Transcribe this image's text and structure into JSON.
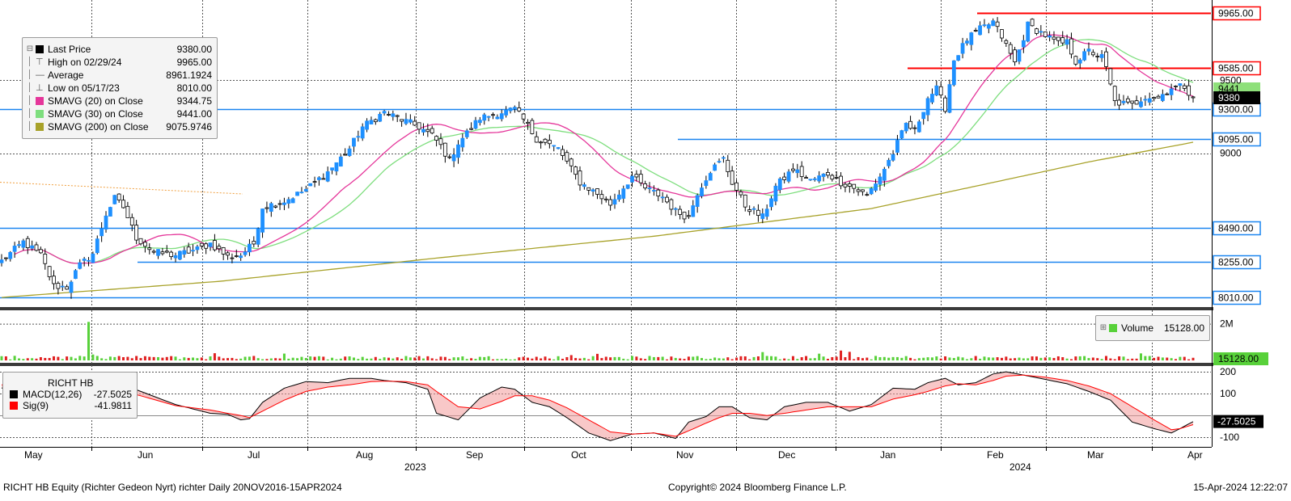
{
  "footer": {
    "left": "RICHT HB Equity (Richter Gedeon Nyrt) richter  Daily 20NOV2016-15APR2024",
    "center": "Copyright© 2024 Bloomberg Finance L.P.",
    "right": "15-Apr-2024 12:22:07"
  },
  "colors": {
    "up": "#1e90ff",
    "down": "#000000",
    "sma20": "#e5369a",
    "sma30": "#7ede7e",
    "sma200": "#a8a22a",
    "hline_blue": "#1a85f0",
    "hline_red": "#ff0000",
    "macd": "#000000",
    "signal": "#ff0000",
    "macd_fill": "#f29a9a"
  },
  "chart_data": [
    {
      "type": "candlestick",
      "panel": "price",
      "legend_placement": "top-left",
      "legend": [
        {
          "icon": "square-icon",
          "label": "Last Price",
          "value": "9380.00",
          "color": "#000000"
        },
        {
          "icon": "high-icon",
          "label": "High on 02/29/24",
          "value": "9965.00",
          "color": ""
        },
        {
          "icon": "average-icon",
          "label": "Average",
          "value": "8961.1924",
          "color": ""
        },
        {
          "icon": "low-icon",
          "label": "Low on 05/17/23",
          "value": "8010.00",
          "color": ""
        },
        {
          "icon": "square-icon",
          "label": "SMAVG (20)  on Close",
          "value": "9344.75",
          "color": "#e5369a"
        },
        {
          "icon": "square-icon",
          "label": "SMAVG (30)  on Close",
          "value": "9441.00",
          "color": "#7ede7e"
        },
        {
          "icon": "square-icon",
          "label": "SMAVG (200)  on Close",
          "value": "9075.9746",
          "color": "#a8a22a"
        }
      ],
      "y_axis": {
        "ylim": [
          7955,
          10040
        ],
        "ticks": [
          9500,
          9000
        ],
        "grid": true
      },
      "x_axis": {
        "months": [
          "May",
          "Jun",
          "Jul",
          "Aug",
          "Sep",
          "Oct",
          "Nov",
          "Dec",
          "Jan",
          "Feb",
          "Mar",
          "Apr"
        ],
        "years": [
          "2023",
          "2024"
        ],
        "month_boundaries": [
          "Jun",
          "Jul",
          "Aug",
          "Sep",
          "Oct",
          "Nov",
          "Dec",
          "Jan",
          "Feb",
          "Mar",
          "Apr"
        ],
        "grid": true
      },
      "horizontal_levels": [
        {
          "value": 9965.0,
          "label": "9965.00",
          "color": "red",
          "start": "Feb"
        },
        {
          "value": 9585.0,
          "label": "9585.00",
          "color": "red",
          "start": "Jan"
        },
        {
          "value": 9300.0,
          "label": "9300.00",
          "color": "blue",
          "start": "May"
        },
        {
          "value": 9095.0,
          "label": "9095.00",
          "color": "blue",
          "start": "Nov"
        },
        {
          "value": 8490.0,
          "label": "8490.00",
          "color": "blue",
          "start": "May"
        },
        {
          "value": 8255.0,
          "label": "8255.00",
          "color": "blue",
          "start": "Jun"
        },
        {
          "value": 8010.0,
          "label": "8010.00",
          "color": "blue",
          "start": "May"
        }
      ],
      "value_tags": [
        {
          "value": 9441.0,
          "label": "9441.00",
          "color": "green"
        },
        {
          "value": 9380.0,
          "label": "9380.00",
          "color": "black"
        }
      ],
      "close_anchors": [
        [
          0,
          8260
        ],
        [
          5,
          8390
        ],
        [
          9,
          8300
        ],
        [
          12,
          8090
        ],
        [
          15,
          8080
        ],
        [
          18,
          8230
        ],
        [
          21,
          8310
        ],
        [
          24,
          8580
        ],
        [
          26,
          8690
        ],
        [
          28,
          8630
        ],
        [
          31,
          8420
        ],
        [
          35,
          8320
        ],
        [
          40,
          8300
        ],
        [
          45,
          8340
        ],
        [
          48,
          8380
        ],
        [
          52,
          8290
        ],
        [
          55,
          8300
        ],
        [
          58,
          8380
        ],
        [
          60,
          8630
        ],
        [
          65,
          8670
        ],
        [
          70,
          8750
        ],
        [
          75,
          8870
        ],
        [
          80,
          9030
        ],
        [
          83,
          9180
        ],
        [
          88,
          9280
        ],
        [
          92,
          9230
        ],
        [
          96,
          9180
        ],
        [
          99,
          9120
        ],
        [
          101,
          9050
        ],
        [
          103,
          8950
        ],
        [
          105,
          9070
        ],
        [
          110,
          9240
        ],
        [
          115,
          9280
        ],
        [
          118,
          9300
        ],
        [
          120,
          9230
        ],
        [
          123,
          9100
        ],
        [
          128,
          9030
        ],
        [
          133,
          8800
        ],
        [
          137,
          8720
        ],
        [
          140,
          8650
        ],
        [
          145,
          8840
        ],
        [
          148,
          8760
        ],
        [
          152,
          8700
        ],
        [
          155,
          8600
        ],
        [
          158,
          8560
        ],
        [
          160,
          8730
        ],
        [
          163,
          8880
        ],
        [
          166,
          8960
        ],
        [
          168,
          8800
        ],
        [
          171,
          8640
        ],
        [
          175,
          8560
        ],
        [
          178,
          8770
        ],
        [
          182,
          8890
        ],
        [
          186,
          8810
        ],
        [
          190,
          8860
        ],
        [
          193,
          8800
        ],
        [
          196,
          8760
        ],
        [
          199,
          8710
        ],
        [
          202,
          8840
        ],
        [
          205,
          9000
        ],
        [
          208,
          9200
        ],
        [
          210,
          9150
        ],
        [
          213,
          9380
        ],
        [
          215,
          9440
        ],
        [
          217,
          9310
        ],
        [
          219,
          9640
        ],
        [
          222,
          9780
        ],
        [
          225,
          9850
        ],
        [
          228,
          9900
        ],
        [
          230,
          9800
        ],
        [
          233,
          9620
        ],
        [
          236,
          9880
        ],
        [
          240,
          9810
        ],
        [
          243,
          9750
        ],
        [
          245,
          9760
        ],
        [
          247,
          9630
        ],
        [
          250,
          9700
        ],
        [
          253,
          9660
        ],
        [
          254,
          9580
        ],
        [
          256,
          9350
        ],
        [
          260,
          9330
        ],
        [
          263,
          9390
        ],
        [
          266,
          9380
        ],
        [
          269,
          9450
        ],
        [
          272,
          9460
        ],
        [
          274,
          9380
        ]
      ],
      "sma200_anchors": [
        [
          0,
          8010
        ],
        [
          50,
          8120
        ],
        [
          100,
          8280
        ],
        [
          150,
          8430
        ],
        [
          200,
          8620
        ],
        [
          250,
          8940
        ],
        [
          274,
          9075
        ]
      ]
    },
    {
      "type": "bar",
      "panel": "volume",
      "legend": [
        {
          "label": "Volume",
          "value": "15128.00",
          "color": "#58d13a"
        }
      ],
      "y_axis": {
        "ticks_label": [
          "2M"
        ],
        "ylim": [
          0,
          2600000
        ]
      },
      "last_value_tag": "15128.00",
      "spike": {
        "bar_index": 20,
        "value": 2100000
      },
      "typical_range": [
        50000,
        250000
      ]
    },
    {
      "type": "line",
      "panel": "macd",
      "legend": [
        {
          "label": "RICHT HB",
          "value": "",
          "color": ""
        },
        {
          "label": "MACD(12,26)",
          "value": "-27.5025",
          "color": "#000000"
        },
        {
          "label": "Sig(9)",
          "value": "-41.9811",
          "color": "#ff0000"
        }
      ],
      "y_axis": {
        "ylim": [
          -125,
          215
        ],
        "ticks": [
          200,
          100,
          -100
        ],
        "zero_line": true
      },
      "last_value_tag": "-27.5025",
      "macd_anchors": [
        [
          0,
          125
        ],
        [
          8,
          160
        ],
        [
          14,
          140
        ],
        [
          18,
          110
        ],
        [
          24,
          135
        ],
        [
          28,
          140
        ],
        [
          32,
          110
        ],
        [
          40,
          50
        ],
        [
          48,
          10
        ],
        [
          52,
          5
        ],
        [
          55,
          -20
        ],
        [
          57,
          -15
        ],
        [
          60,
          60
        ],
        [
          65,
          125
        ],
        [
          70,
          155
        ],
        [
          75,
          150
        ],
        [
          80,
          170
        ],
        [
          85,
          170
        ],
        [
          88,
          160
        ],
        [
          93,
          150
        ],
        [
          98,
          120
        ],
        [
          100,
          10
        ],
        [
          105,
          -20
        ],
        [
          110,
          80
        ],
        [
          115,
          130
        ],
        [
          118,
          120
        ],
        [
          122,
          60
        ],
        [
          126,
          40
        ],
        [
          130,
          -10
        ],
        [
          135,
          -80
        ],
        [
          140,
          -115
        ],
        [
          145,
          -85
        ],
        [
          150,
          -80
        ],
        [
          155,
          -105
        ],
        [
          158,
          -30
        ],
        [
          162,
          -5
        ],
        [
          165,
          40
        ],
        [
          168,
          40
        ],
        [
          172,
          -10
        ],
        [
          176,
          -20
        ],
        [
          180,
          40
        ],
        [
          185,
          60
        ],
        [
          190,
          60
        ],
        [
          195,
          20
        ],
        [
          200,
          50
        ],
        [
          205,
          125
        ],
        [
          210,
          120
        ],
        [
          213,
          150
        ],
        [
          217,
          170
        ],
        [
          220,
          140
        ],
        [
          224,
          150
        ],
        [
          228,
          190
        ],
        [
          231,
          200
        ],
        [
          235,
          185
        ],
        [
          240,
          165
        ],
        [
          245,
          145
        ],
        [
          250,
          110
        ],
        [
          255,
          70
        ],
        [
          260,
          -30
        ],
        [
          265,
          -60
        ],
        [
          269,
          -80
        ],
        [
          271,
          -60
        ],
        [
          274,
          -28
        ]
      ],
      "signal_anchors": [
        [
          0,
          140
        ],
        [
          8,
          140
        ],
        [
          14,
          125
        ],
        [
          18,
          120
        ],
        [
          24,
          112
        ],
        [
          28,
          110
        ],
        [
          32,
          90
        ],
        [
          40,
          45
        ],
        [
          48,
          25
        ],
        [
          52,
          10
        ],
        [
          55,
          0
        ],
        [
          57,
          -10
        ],
        [
          60,
          20
        ],
        [
          65,
          70
        ],
        [
          70,
          110
        ],
        [
          75,
          130
        ],
        [
          80,
          140
        ],
        [
          85,
          155
        ],
        [
          88,
          157
        ],
        [
          93,
          155
        ],
        [
          98,
          140
        ],
        [
          100,
          110
        ],
        [
          105,
          40
        ],
        [
          110,
          30
        ],
        [
          115,
          65
        ],
        [
          118,
          90
        ],
        [
          122,
          90
        ],
        [
          126,
          70
        ],
        [
          130,
          35
        ],
        [
          135,
          -20
        ],
        [
          140,
          -75
        ],
        [
          145,
          -85
        ],
        [
          150,
          -80
        ],
        [
          155,
          -95
        ],
        [
          158,
          -70
        ],
        [
          162,
          -35
        ],
        [
          165,
          -10
        ],
        [
          168,
          10
        ],
        [
          172,
          10
        ],
        [
          176,
          0
        ],
        [
          180,
          10
        ],
        [
          185,
          25
        ],
        [
          190,
          40
        ],
        [
          195,
          40
        ],
        [
          200,
          40
        ],
        [
          205,
          75
        ],
        [
          210,
          95
        ],
        [
          213,
          110
        ],
        [
          217,
          135
        ],
        [
          220,
          145
        ],
        [
          224,
          140
        ],
        [
          228,
          160
        ],
        [
          231,
          180
        ],
        [
          235,
          185
        ],
        [
          240,
          175
        ],
        [
          245,
          160
        ],
        [
          250,
          135
        ],
        [
          255,
          100
        ],
        [
          260,
          40
        ],
        [
          265,
          -20
        ],
        [
          269,
          -65
        ],
        [
          271,
          -60
        ],
        [
          274,
          -42
        ]
      ]
    }
  ]
}
